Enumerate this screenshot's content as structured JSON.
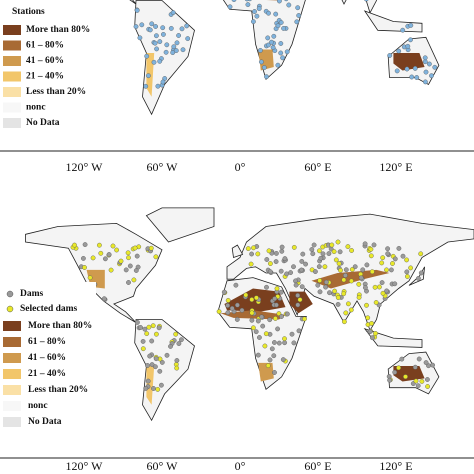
{
  "top_panel": {
    "legend": {
      "title": "Stations",
      "items": [
        "More than 80%",
        "61 – 80%",
        "41 – 60%",
        "21 – 40%",
        "Less than 20%",
        "nonc",
        "No Data"
      ]
    }
  },
  "middle_axis": {
    "longitude_labels": [
      "120° W",
      "60° W",
      "0°",
      "60° E",
      "120° E"
    ]
  },
  "bottom_panel": {
    "legend": {
      "markers": [
        "Dams",
        "Selected dams"
      ],
      "items": [
        "More than 80%",
        "61 – 80%",
        "41 – 60%",
        "21 – 40%",
        "Less than 20%",
        "nonc",
        "No Data"
      ]
    }
  },
  "bottom_axis": {
    "longitude_labels": [
      "120° W",
      "60° W",
      "0°",
      "60° E",
      "120° E"
    ]
  }
}
